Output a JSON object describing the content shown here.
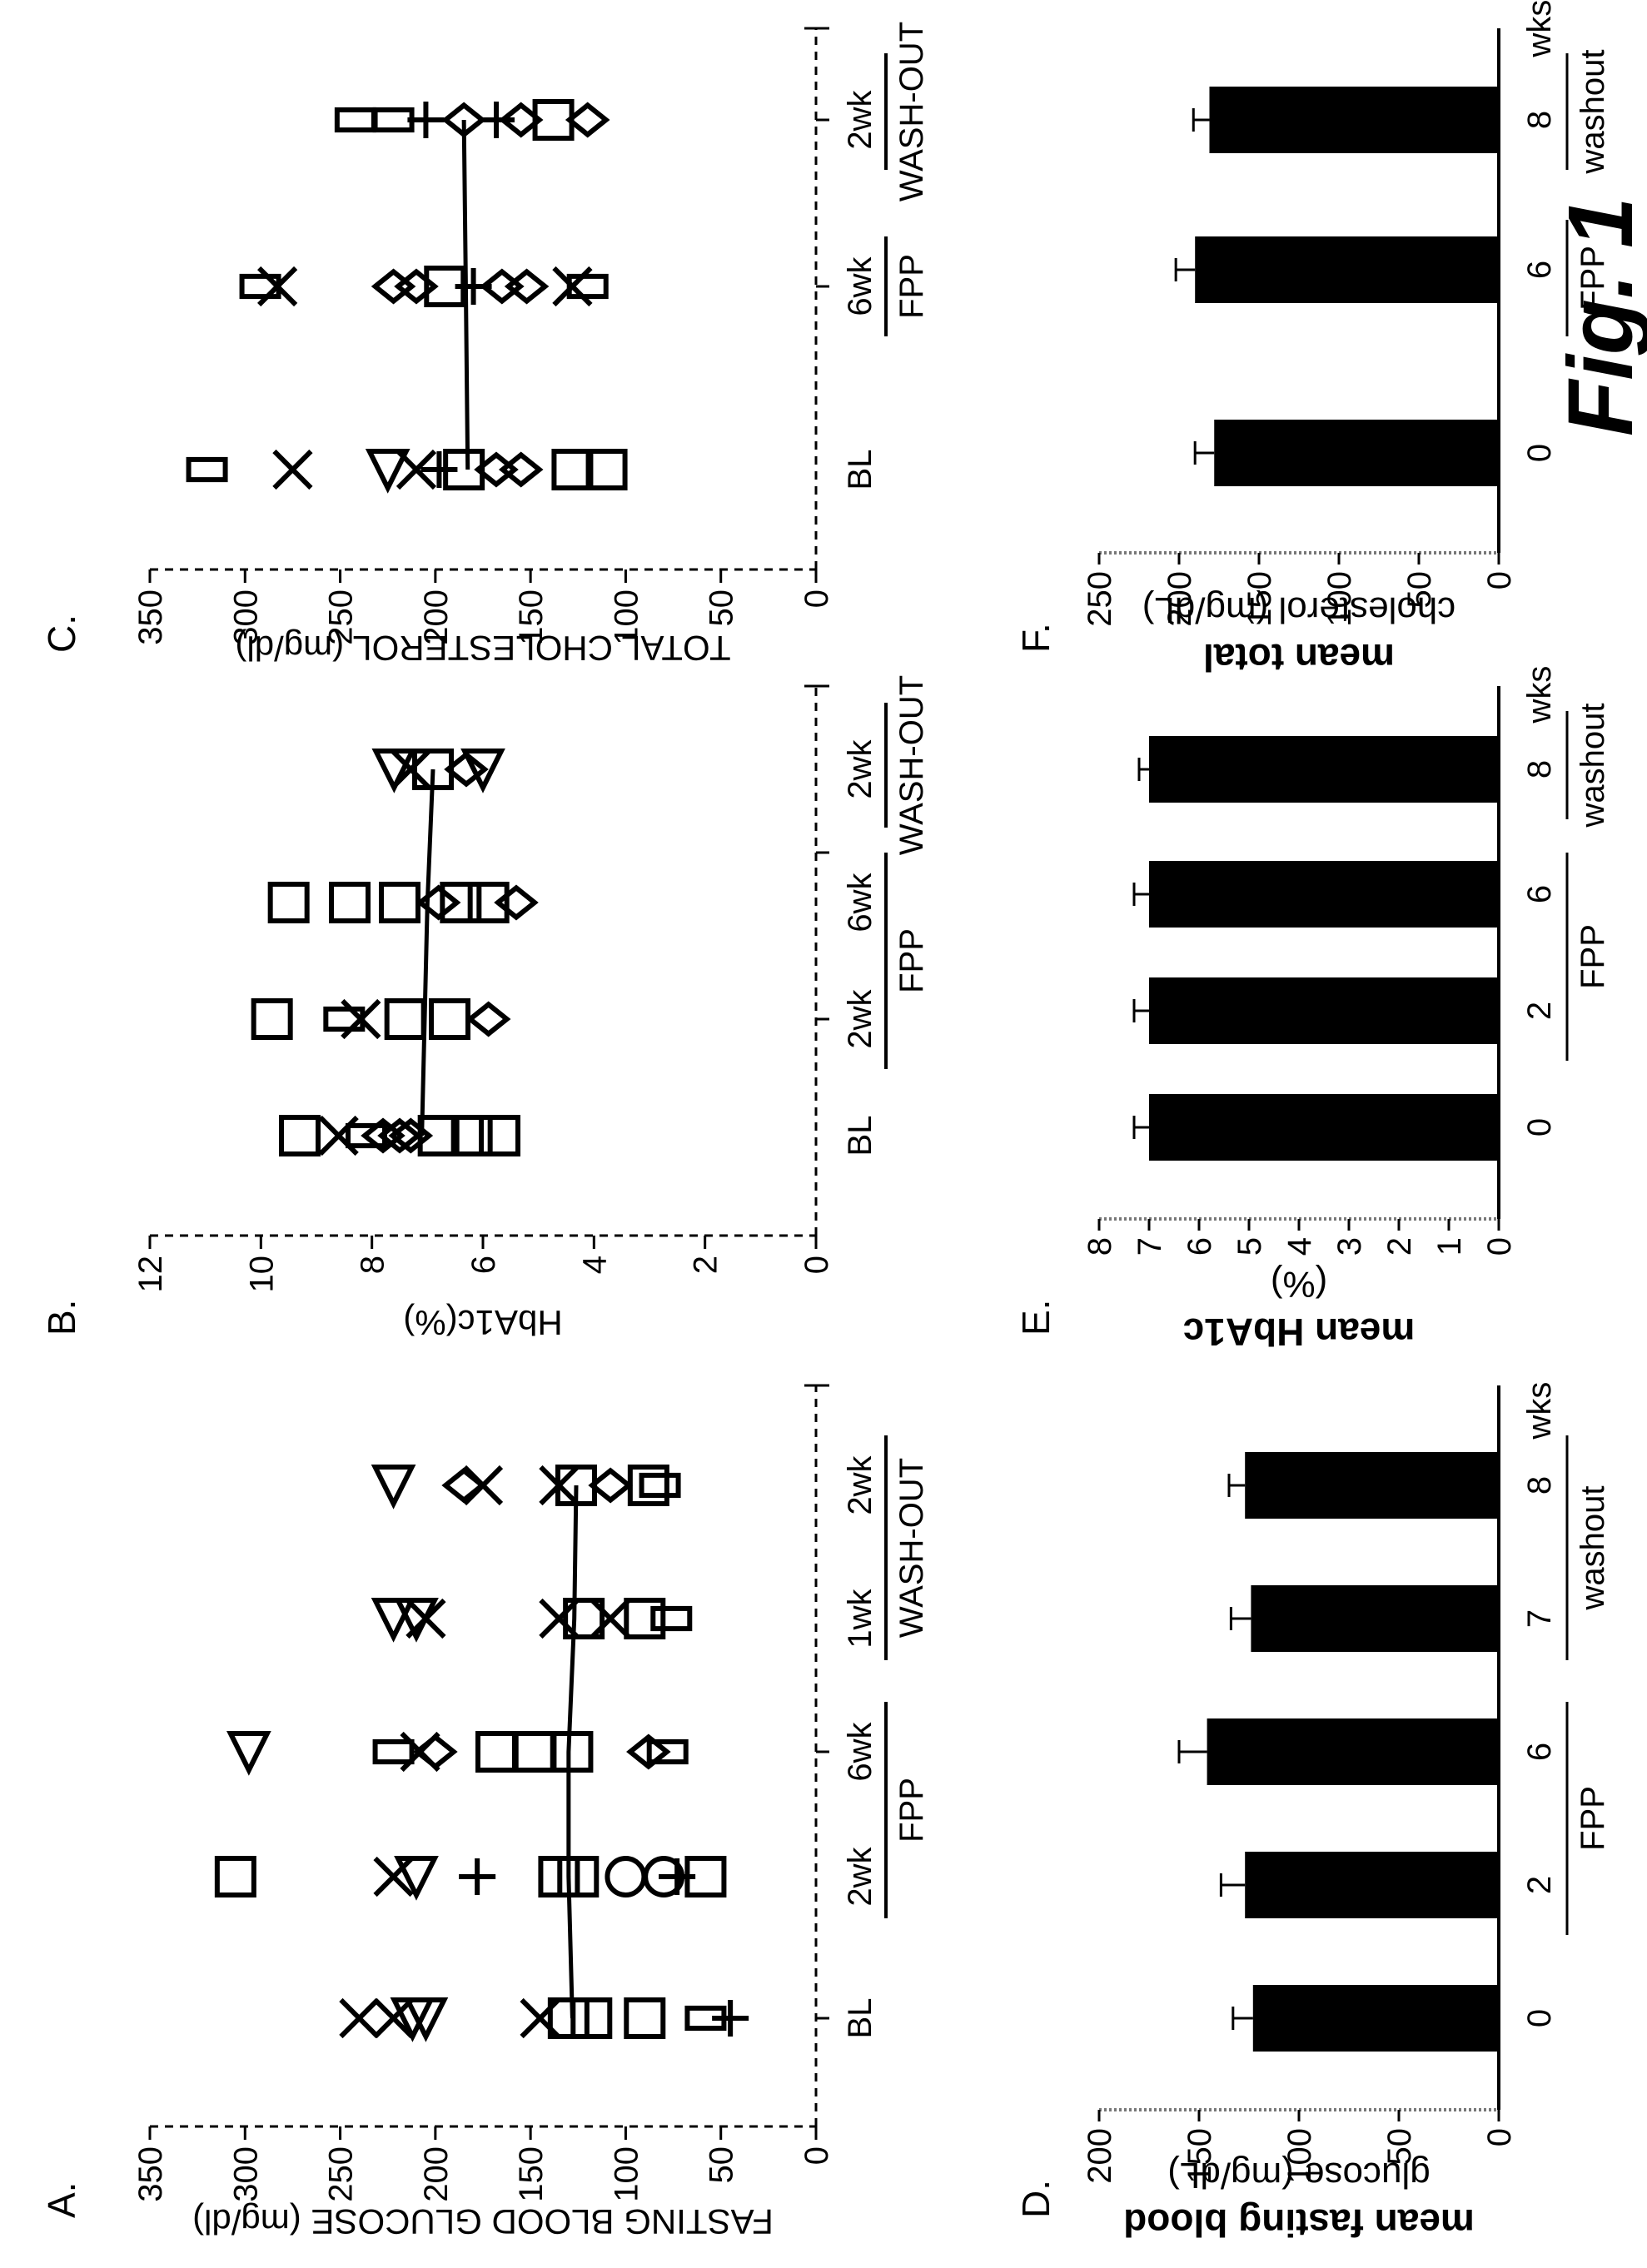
{
  "figure_label": "Fig. 1",
  "panels": {
    "A": {
      "letter": "A.",
      "ylabel": "FASTING BLOOD GLUCOSE (mg/dl)",
      "ticks": [
        "0",
        "50",
        "100",
        "150",
        "200",
        "250",
        "300",
        "350"
      ],
      "timepoints": [
        "BL",
        "2wk",
        "6wk",
        "1wk",
        "2wk"
      ],
      "groups": [
        "FPP",
        "WASH-OUT"
      ]
    },
    "B": {
      "letter": "B.",
      "ylabel": "HbA1c(%)",
      "ticks": [
        "0",
        "2",
        "4",
        "6",
        "8",
        "10",
        "12"
      ],
      "timepoints": [
        "BL",
        "2wk",
        "6wk",
        "2wk"
      ],
      "groups": [
        "FPP",
        "WASH-OUT"
      ]
    },
    "C": {
      "letter": "C.",
      "ylabel": "TOTAL CHOLESTEROL (mg/dl)",
      "ticks": [
        "0",
        "50",
        "100",
        "150",
        "200",
        "250",
        "300",
        "350"
      ],
      "timepoints": [
        "BL",
        "6wk",
        "2wk"
      ],
      "groups": [
        "FPP",
        "WASH-OUT"
      ]
    },
    "D": {
      "letter": "D.",
      "ylabel_lines": [
        "mean fasting blood",
        "glucose (mg/dL)"
      ],
      "ticks": [
        "0",
        "50",
        "100",
        "150",
        "200"
      ],
      "categories": [
        "0",
        "2",
        "6",
        "7",
        "8"
      ],
      "groups": [
        "FPP",
        "washout"
      ],
      "unit": "wks"
    },
    "E": {
      "letter": "E.",
      "ylabel_lines": [
        "mean HbA1c",
        "(%)"
      ],
      "ticks": [
        "0",
        "1",
        "2",
        "3",
        "4",
        "5",
        "6",
        "7",
        "8"
      ],
      "categories": [
        "0",
        "2",
        "6",
        "8"
      ],
      "groups": [
        "FPP",
        "washout"
      ],
      "unit": "wks"
    },
    "F": {
      "letter": "F.",
      "ylabel_lines": [
        "mean total",
        "cholesterol (mg/dL)"
      ],
      "ticks": [
        "0",
        "50",
        "100",
        "150",
        "200",
        "250"
      ],
      "categories": [
        "0",
        "6",
        "8"
      ],
      "groups": [
        "FPP",
        "washout"
      ],
      "unit": "wks"
    }
  },
  "chart_data": [
    {
      "panel": "A",
      "type": "scatter",
      "ylabel": "FASTING BLOOD GLUCOSE (mg/dl)",
      "ylim": [
        0,
        350
      ],
      "x": [
        "BL",
        "2wk",
        "6wk",
        "1wk",
        "2wk"
      ],
      "mean_line": [
        128,
        130,
        130,
        127,
        126
      ],
      "points": [
        {
          "x": "BL",
          "y": 240,
          "m": "x"
        },
        {
          "x": "BL",
          "y": 222,
          "m": "x"
        },
        {
          "x": "BL",
          "y": 212,
          "m": "tri"
        },
        {
          "x": "BL",
          "y": 205,
          "m": "tri"
        },
        {
          "x": "BL",
          "y": 145,
          "m": "x"
        },
        {
          "x": "BL",
          "y": 130,
          "m": "sq"
        },
        {
          "x": "BL",
          "y": 118,
          "m": "sq"
        },
        {
          "x": "BL",
          "y": 90,
          "m": "sq"
        },
        {
          "x": "BL",
          "y": 58,
          "m": "rect"
        },
        {
          "x": "BL",
          "y": 45,
          "m": "plus"
        },
        {
          "x": "2wk",
          "y": 305,
          "m": "sq"
        },
        {
          "x": "2wk",
          "y": 222,
          "m": "x"
        },
        {
          "x": "2wk",
          "y": 210,
          "m": "tri"
        },
        {
          "x": "2wk",
          "y": 178,
          "m": "plus"
        },
        {
          "x": "2wk",
          "y": 135,
          "m": "sq"
        },
        {
          "x": "2wk",
          "y": 125,
          "m": "sq"
        },
        {
          "x": "2wk",
          "y": 100,
          "m": "circ"
        },
        {
          "x": "2wk",
          "y": 80,
          "m": "circ"
        },
        {
          "x": "2wk",
          "y": 73,
          "m": "plus"
        },
        {
          "x": "2wk",
          "y": 58,
          "m": "sq"
        },
        {
          "x": "6wk",
          "y": 298,
          "m": "tri"
        },
        {
          "x": "6wk",
          "y": 222,
          "m": "rect"
        },
        {
          "x": "6wk",
          "y": 208,
          "m": "x"
        },
        {
          "x": "6wk",
          "y": 200,
          "m": "dia"
        },
        {
          "x": "6wk",
          "y": 168,
          "m": "sq"
        },
        {
          "x": "6wk",
          "y": 148,
          "m": "sq"
        },
        {
          "x": "6wk",
          "y": 128,
          "m": "sq"
        },
        {
          "x": "6wk",
          "y": 88,
          "m": "dia"
        },
        {
          "x": "6wk",
          "y": 78,
          "m": "rect"
        },
        {
          "x": "1wk",
          "y": 222,
          "m": "tri"
        },
        {
          "x": "1wk",
          "y": 210,
          "m": "tri"
        },
        {
          "x": "1wk",
          "y": 205,
          "m": "x"
        },
        {
          "x": "1wk",
          "y": 135,
          "m": "x"
        },
        {
          "x": "1wk",
          "y": 122,
          "m": "sq"
        },
        {
          "x": "1wk",
          "y": 108,
          "m": "x"
        },
        {
          "x": "1wk",
          "y": 90,
          "m": "sq"
        },
        {
          "x": "1wk",
          "y": 76,
          "m": "rect"
        },
        {
          "x": "2wk",
          "i": 4,
          "y": 222,
          "m": "tri"
        },
        {
          "x": "2wk",
          "i": 4,
          "y": 185,
          "m": "dia"
        },
        {
          "x": "2wk",
          "i": 4,
          "y": 175,
          "m": "x"
        },
        {
          "x": "2wk",
          "i": 4,
          "y": 135,
          "m": "x"
        },
        {
          "x": "2wk",
          "i": 4,
          "y": 126,
          "m": "sq"
        },
        {
          "x": "2wk",
          "i": 4,
          "y": 108,
          "m": "dia"
        },
        {
          "x": "2wk",
          "i": 4,
          "y": 88,
          "m": "sq"
        },
        {
          "x": "2wk",
          "i": 4,
          "y": 82,
          "m": "rect"
        }
      ]
    },
    {
      "panel": "B",
      "type": "scatter",
      "ylabel": "HbA1c(%)",
      "ylim": [
        0,
        12
      ],
      "x": [
        "BL",
        "2wk",
        "6wk",
        "2wk"
      ],
      "mean_line": [
        7.1,
        7.05,
        7.0,
        6.9
      ],
      "points": [
        {
          "x": "BL",
          "y": 9.3,
          "m": "sq"
        },
        {
          "x": "BL",
          "y": 8.6,
          "m": "x"
        },
        {
          "x": "BL",
          "y": 8.1,
          "m": "rect"
        },
        {
          "x": "BL",
          "y": 7.8,
          "m": "dia"
        },
        {
          "x": "BL",
          "y": 7.5,
          "m": "dia"
        },
        {
          "x": "BL",
          "y": 7.3,
          "m": "dia"
        },
        {
          "x": "BL",
          "y": 6.8,
          "m": "sq"
        },
        {
          "x": "BL",
          "y": 6.2,
          "m": "sq"
        },
        {
          "x": "BL",
          "y": 5.7,
          "m": "sq"
        },
        {
          "x": "2wk",
          "y": 9.8,
          "m": "sq"
        },
        {
          "x": "2wk",
          "y": 8.5,
          "m": "rect"
        },
        {
          "x": "2wk",
          "y": 8.2,
          "m": "x"
        },
        {
          "x": "2wk",
          "y": 7.4,
          "m": "sq"
        },
        {
          "x": "2wk",
          "y": 6.6,
          "m": "sq"
        },
        {
          "x": "2wk",
          "y": 5.9,
          "m": "dia"
        },
        {
          "x": "6wk",
          "y": 9.5,
          "m": "sq"
        },
        {
          "x": "6wk",
          "y": 8.4,
          "m": "sq"
        },
        {
          "x": "6wk",
          "y": 7.5,
          "m": "sq"
        },
        {
          "x": "6wk",
          "y": 6.8,
          "m": "dia"
        },
        {
          "x": "6wk",
          "y": 6.4,
          "m": "sq"
        },
        {
          "x": "6wk",
          "y": 5.9,
          "m": "sq"
        },
        {
          "x": "6wk",
          "y": 5.4,
          "m": "dia"
        },
        {
          "x": "2wk",
          "i": 3,
          "y": 7.6,
          "m": "tri"
        },
        {
          "x": "2wk",
          "i": 3,
          "y": 7.3,
          "m": "x"
        },
        {
          "x": "2wk",
          "i": 3,
          "y": 6.9,
          "m": "sq"
        },
        {
          "x": "2wk",
          "i": 3,
          "y": 6.3,
          "m": "dia"
        },
        {
          "x": "2wk",
          "i": 3,
          "y": 6.0,
          "m": "tri"
        }
      ]
    },
    {
      "panel": "C",
      "type": "scatter",
      "ylabel": "TOTAL CHOLESTEROL (mg/dl)",
      "ylim": [
        0,
        350
      ],
      "x": [
        "BL",
        "6wk",
        "2wk"
      ],
      "mean_line": [
        183,
        184,
        185
      ],
      "points": [
        {
          "x": "BL",
          "y": 320,
          "m": "rect"
        },
        {
          "x": "BL",
          "y": 275,
          "m": "x"
        },
        {
          "x": "BL",
          "y": 225,
          "m": "tri"
        },
        {
          "x": "BL",
          "y": 210,
          "m": "x"
        },
        {
          "x": "BL",
          "y": 198,
          "m": "plus"
        },
        {
          "x": "BL",
          "y": 185,
          "m": "sq"
        },
        {
          "x": "BL",
          "y": 168,
          "m": "dia"
        },
        {
          "x": "BL",
          "y": 155,
          "m": "dia"
        },
        {
          "x": "BL",
          "y": 128,
          "m": "sq"
        },
        {
          "x": "BL",
          "y": 110,
          "m": "sq"
        },
        {
          "x": "6wk",
          "y": 292,
          "m": "rect"
        },
        {
          "x": "6wk",
          "y": 283,
          "m": "x"
        },
        {
          "x": "6wk",
          "y": 222,
          "m": "dia"
        },
        {
          "x": "6wk",
          "y": 210,
          "m": "dia"
        },
        {
          "x": "6wk",
          "y": 195,
          "m": "sq"
        },
        {
          "x": "6wk",
          "y": 180,
          "m": "plus"
        },
        {
          "x": "6wk",
          "y": 165,
          "m": "dia"
        },
        {
          "x": "6wk",
          "y": 152,
          "m": "dia"
        },
        {
          "x": "6wk",
          "y": 128,
          "m": "x"
        },
        {
          "x": "6wk",
          "y": 120,
          "m": "rect"
        },
        {
          "x": "2wk",
          "y": 242,
          "m": "rect"
        },
        {
          "x": "2wk",
          "y": 222,
          "m": "rect"
        },
        {
          "x": "2wk",
          "y": 205,
          "m": "plus"
        },
        {
          "x": "2wk",
          "y": 185,
          "m": "dia"
        },
        {
          "x": "2wk",
          "y": 168,
          "m": "plus"
        },
        {
          "x": "2wk",
          "y": 155,
          "m": "dia"
        },
        {
          "x": "2wk",
          "y": 138,
          "m": "sq"
        },
        {
          "x": "2wk",
          "y": 120,
          "m": "dia"
        }
      ]
    },
    {
      "panel": "D",
      "type": "bar",
      "ylabel": "mean fasting blood glucose (mg/dL)",
      "ylim": [
        0,
        200
      ],
      "categories": [
        "0",
        "2",
        "6",
        "7",
        "8"
      ],
      "values": [
        123,
        127,
        146,
        124,
        127
      ],
      "errors": [
        10,
        12,
        14,
        10,
        8
      ]
    },
    {
      "panel": "E",
      "type": "bar",
      "ylabel": "mean HbA1c (%)",
      "ylim": [
        0,
        8
      ],
      "categories": [
        "0",
        "2",
        "6",
        "8"
      ],
      "values": [
        7.0,
        7.0,
        7.0,
        7.0
      ],
      "errors": [
        0.3,
        0.3,
        0.3,
        0.2
      ]
    },
    {
      "panel": "F",
      "type": "bar",
      "ylabel": "mean total cholesterol (mg/dL)",
      "ylim": [
        0,
        250
      ],
      "categories": [
        "0",
        "6",
        "8"
      ],
      "values": [
        178,
        190,
        181
      ],
      "errors": [
        12,
        12,
        10
      ]
    }
  ]
}
